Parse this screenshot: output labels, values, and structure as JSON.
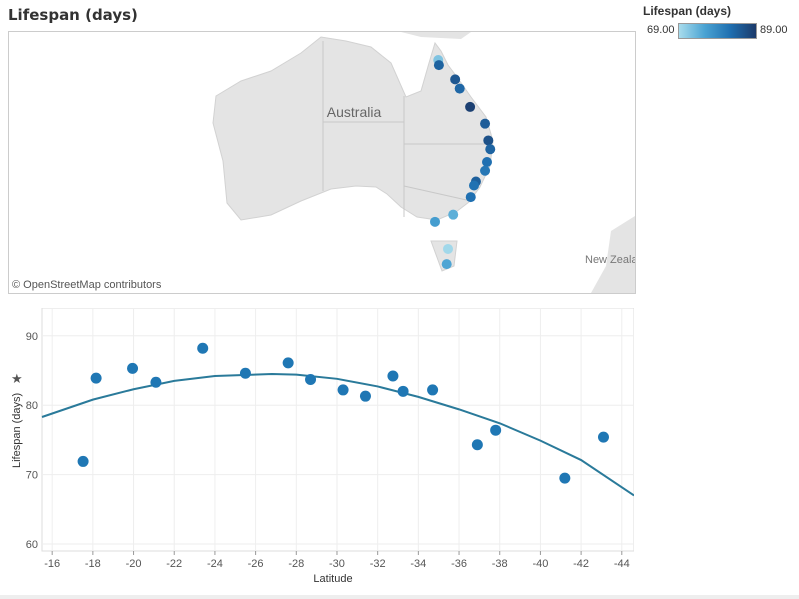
{
  "title": "Lifespan (days)",
  "legend": {
    "title": "Lifespan (days)",
    "min": "69.00",
    "max": "89.00",
    "colors": [
      "#a8dcec",
      "#4aa3d3",
      "#1f6fb0",
      "#1c3a6a"
    ]
  },
  "map": {
    "country_label": "Australia",
    "nz_label": "New Zeala",
    "credit": "© OpenStreetMap contributors",
    "points": [
      {
        "lat": -17.52,
        "lon": 145.5,
        "value": 71.9
      },
      {
        "lat": -18.16,
        "lon": 145.6,
        "value": 83.9
      },
      {
        "lat": -19.95,
        "lon": 148.1,
        "value": 85.3
      },
      {
        "lat": -21.1,
        "lon": 148.8,
        "value": 83.3
      },
      {
        "lat": -23.4,
        "lon": 150.4,
        "value": 88.2
      },
      {
        "lat": -25.5,
        "lon": 152.7,
        "value": 84.6
      },
      {
        "lat": -27.6,
        "lon": 153.2,
        "value": 86.1
      },
      {
        "lat": -28.7,
        "lon": 153.5,
        "value": 83.7
      },
      {
        "lat": -30.3,
        "lon": 153.0,
        "value": 82.2
      },
      {
        "lat": -31.4,
        "lon": 152.7,
        "value": 81.3
      },
      {
        "lat": -32.75,
        "lon": 151.3,
        "value": 84.2
      },
      {
        "lat": -33.25,
        "lon": 151.0,
        "value": 82.0
      },
      {
        "lat": -34.7,
        "lon": 150.5,
        "value": 82.2
      },
      {
        "lat": -36.9,
        "lon": 147.8,
        "value": 74.3
      },
      {
        "lat": -37.8,
        "lon": 145.0,
        "value": 76.4
      },
      {
        "lat": -41.2,
        "lon": 147.0,
        "value": 69.5
      },
      {
        "lat": -43.1,
        "lon": 146.8,
        "value": 75.4
      }
    ]
  },
  "chart_data": {
    "type": "scatter",
    "xlabel": "Latitude",
    "ylabel": "Lifespan (days)",
    "xlim": [
      -15.5,
      -44.6
    ],
    "ylim": [
      59,
      94
    ],
    "xticks": [
      "-16",
      "-18",
      "-20",
      "-22",
      "-24",
      "-26",
      "-28",
      "-30",
      "-32",
      "-34",
      "-36",
      "-38",
      "-40",
      "-42",
      "-44"
    ],
    "yticks": [
      "60",
      "70",
      "80",
      "90"
    ],
    "color": "#1f77b4",
    "trend_color": "#2a7a9a",
    "points": [
      {
        "x": -17.52,
        "y": 71.9
      },
      {
        "x": -18.16,
        "y": 83.9
      },
      {
        "x": -19.95,
        "y": 85.3
      },
      {
        "x": -21.1,
        "y": 83.3
      },
      {
        "x": -23.4,
        "y": 88.2
      },
      {
        "x": -25.5,
        "y": 84.6
      },
      {
        "x": -27.6,
        "y": 86.1
      },
      {
        "x": -28.7,
        "y": 83.7
      },
      {
        "x": -30.3,
        "y": 82.2
      },
      {
        "x": -31.4,
        "y": 81.3
      },
      {
        "x": -32.75,
        "y": 84.2
      },
      {
        "x": -33.25,
        "y": 82.0
      },
      {
        "x": -34.7,
        "y": 82.2
      },
      {
        "x": -36.9,
        "y": 74.3
      },
      {
        "x": -37.8,
        "y": 76.4
      },
      {
        "x": -41.2,
        "y": 69.5
      },
      {
        "x": -43.1,
        "y": 75.4
      }
    ],
    "trend": [
      {
        "x": -15.5,
        "y": 78.3
      },
      {
        "x": -18,
        "y": 80.8
      },
      {
        "x": -20,
        "y": 82.3
      },
      {
        "x": -22,
        "y": 83.5
      },
      {
        "x": -24,
        "y": 84.2
      },
      {
        "x": -26.8,
        "y": 84.5
      },
      {
        "x": -28,
        "y": 84.4
      },
      {
        "x": -30,
        "y": 83.8
      },
      {
        "x": -32,
        "y": 82.7
      },
      {
        "x": -34,
        "y": 81.2
      },
      {
        "x": -36,
        "y": 79.4
      },
      {
        "x": -38,
        "y": 77.4
      },
      {
        "x": -40,
        "y": 74.9
      },
      {
        "x": -42,
        "y": 72.1
      },
      {
        "x": -44.6,
        "y": 67.0
      }
    ]
  }
}
